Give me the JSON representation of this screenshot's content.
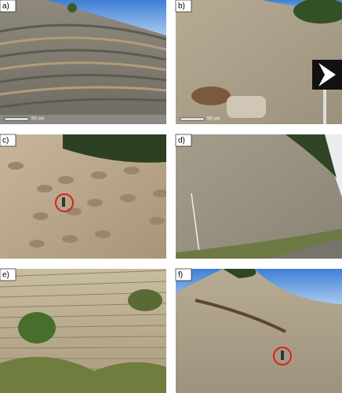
{
  "panels": [
    {
      "label": "a)",
      "scale_label": "50 cm"
    },
    {
      "label": "b)",
      "scale_label": "50 cm"
    },
    {
      "label": "c)"
    },
    {
      "label": "d)"
    },
    {
      "label": "e)"
    },
    {
      "label": "f)"
    }
  ]
}
